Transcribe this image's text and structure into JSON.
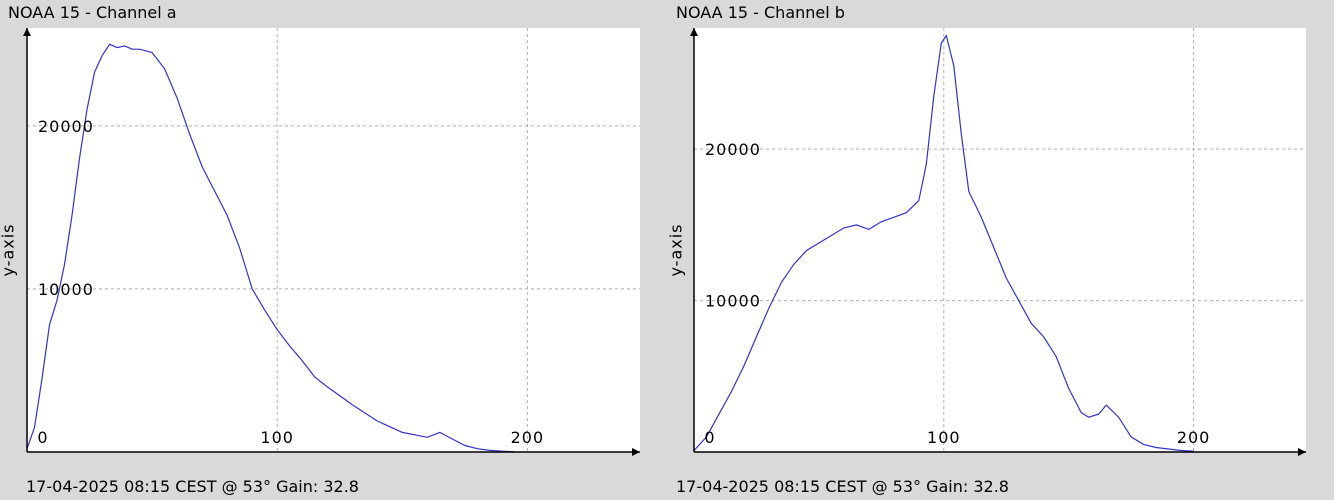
{
  "colors": {
    "background": "#d9d9d9",
    "plot_background": "#ffffff",
    "line": "#3333cc",
    "grid": "#b0b0b0",
    "axis": "#000000"
  },
  "chart_data": [
    {
      "type": "line",
      "title": "NOAA 15 - Channel a",
      "footer": "17-04-2025 08:15 CEST @ 53° Gain: 32.8",
      "xlabel": "",
      "ylabel": "y-axis",
      "xlim": [
        0,
        245
      ],
      "ylim": [
        0,
        26000
      ],
      "xticks": [
        0,
        100,
        200
      ],
      "yticks": [
        10000,
        20000
      ],
      "grid": true,
      "series": [
        {
          "x": [
            0,
            3,
            6,
            9,
            12,
            15,
            18,
            21,
            24,
            27,
            30,
            33,
            36,
            39,
            42,
            45,
            50,
            55,
            60,
            65,
            70,
            75,
            80,
            85,
            90,
            95,
            100,
            105,
            110,
            115,
            120,
            130,
            140,
            150,
            160,
            165,
            170,
            175,
            180,
            185,
            190,
            195
          ],
          "y": [
            200,
            1500,
            4500,
            7800,
            9300,
            11500,
            14500,
            18000,
            21000,
            23300,
            24300,
            25000,
            24800,
            24900,
            24700,
            24700,
            24500,
            23500,
            21700,
            19500,
            17500,
            16000,
            14500,
            12500,
            10000,
            8700,
            7500,
            6500,
            5600,
            4600,
            4000,
            2900,
            1900,
            1200,
            900,
            1200,
            800,
            400,
            200,
            100,
            50,
            20
          ]
        }
      ]
    },
    {
      "type": "line",
      "title": "NOAA 15 - Channel b",
      "footer": "17-04-2025 08:15 CEST @ 53° Gain: 32.8",
      "xlabel": "",
      "ylabel": "y-axis",
      "xlim": [
        0,
        245
      ],
      "ylim": [
        0,
        28000
      ],
      "xticks": [
        0,
        100,
        200
      ],
      "yticks": [
        10000,
        20000
      ],
      "grid": true,
      "series": [
        {
          "x": [
            0,
            5,
            10,
            15,
            20,
            25,
            30,
            35,
            40,
            45,
            50,
            55,
            60,
            65,
            70,
            75,
            80,
            85,
            90,
            93,
            96,
            99,
            101,
            104,
            107,
            110,
            115,
            120,
            125,
            130,
            135,
            140,
            145,
            150,
            155,
            158,
            162,
            165,
            170,
            175,
            180,
            185,
            190,
            195,
            200
          ],
          "y": [
            100,
            1000,
            2500,
            4000,
            5700,
            7600,
            9500,
            11200,
            12400,
            13300,
            13800,
            14300,
            14800,
            15000,
            14700,
            15200,
            15500,
            15800,
            16600,
            19000,
            23500,
            27000,
            27500,
            25500,
            21000,
            17200,
            15500,
            13500,
            11500,
            10000,
            8500,
            7600,
            6300,
            4200,
            2600,
            2300,
            2500,
            3100,
            2300,
            1000,
            500,
            300,
            200,
            100,
            50
          ]
        }
      ]
    }
  ]
}
